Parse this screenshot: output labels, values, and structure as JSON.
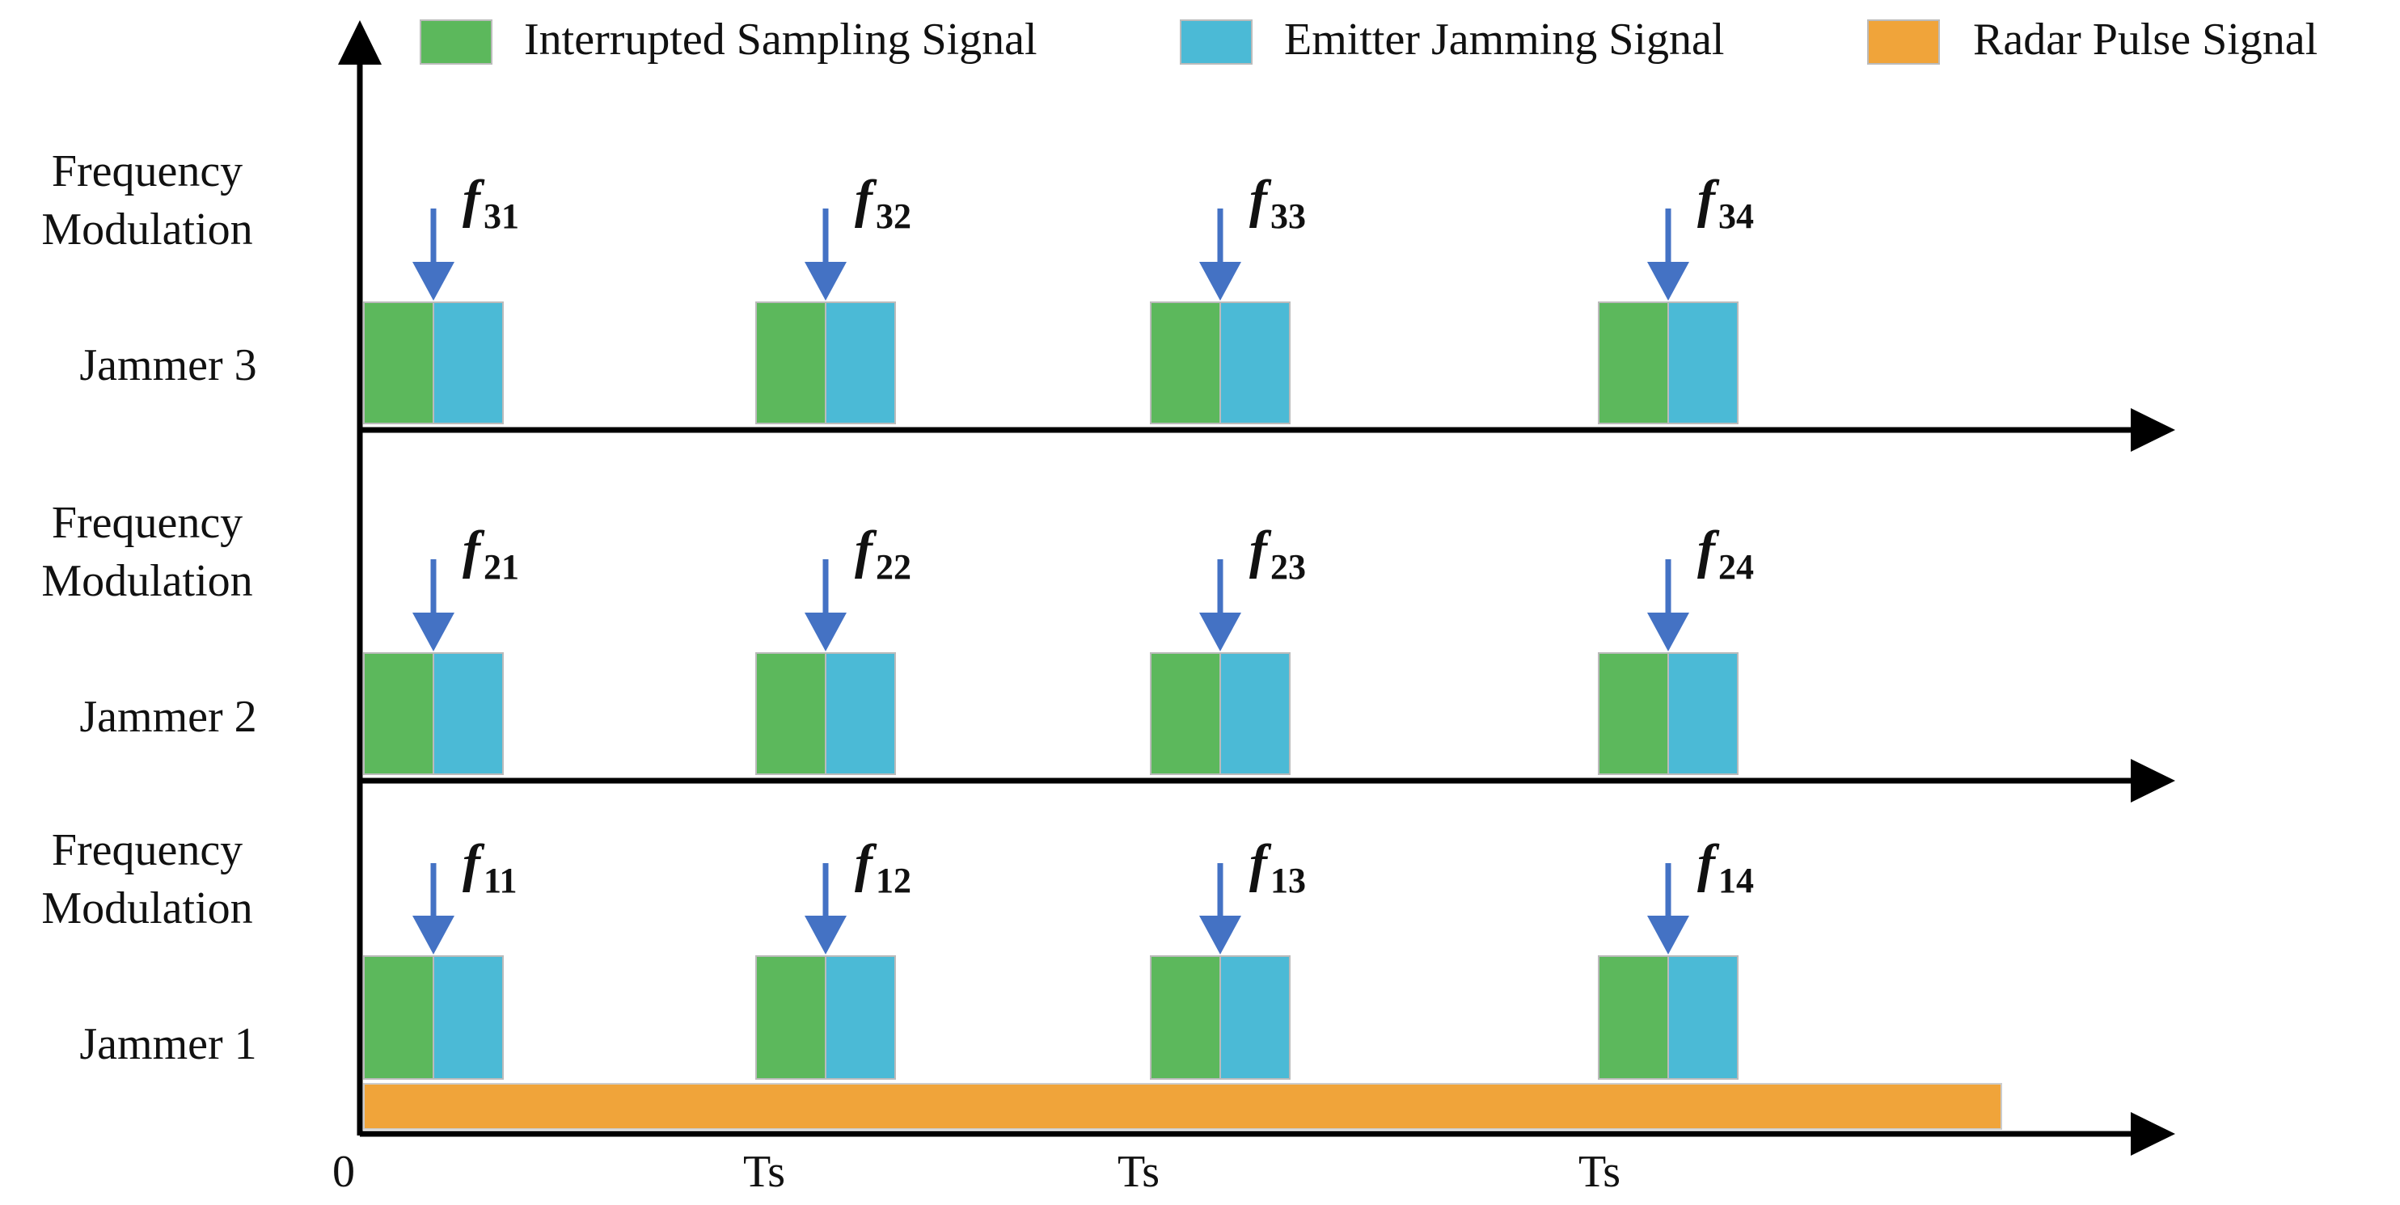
{
  "legend": [
    {
      "label": "Interrupted Sampling Signal",
      "color": "#5cb85c"
    },
    {
      "label": "Emitter Jamming Signal",
      "color": "#4bbad6"
    },
    {
      "label": "Radar Pulse Signal",
      "color": "#f0a43a"
    }
  ],
  "rows": [
    {
      "jammer_label": "Jammer 3",
      "fm_label_line1": "Frequency",
      "fm_label_line2": "Modulation",
      "freqs": [
        {
          "base": "f",
          "sub": "31"
        },
        {
          "base": "f",
          "sub": "32"
        },
        {
          "base": "f",
          "sub": "33"
        },
        {
          "base": "f",
          "sub": "34"
        }
      ]
    },
    {
      "jammer_label": "Jammer 2",
      "fm_label_line1": "Frequency",
      "fm_label_line2": "Modulation",
      "freqs": [
        {
          "base": "f",
          "sub": "21"
        },
        {
          "base": "f",
          "sub": "22"
        },
        {
          "base": "f",
          "sub": "23"
        },
        {
          "base": "f",
          "sub": "24"
        }
      ]
    },
    {
      "jammer_label": "Jammer 1",
      "fm_label_line1": "Frequency",
      "fm_label_line2": "Modulation",
      "freqs": [
        {
          "base": "f",
          "sub": "11"
        },
        {
          "base": "f",
          "sub": "12"
        },
        {
          "base": "f",
          "sub": "13"
        },
        {
          "base": "f",
          "sub": "14"
        }
      ]
    }
  ],
  "time_labels": [
    "0",
    "Ts",
    "Ts",
    "Ts"
  ],
  "colors": {
    "sampling": "#5cb85c",
    "jamming": "#4bbad6",
    "radar": "#f0a43a",
    "arrow": "#4472c4",
    "axis": "#000000"
  }
}
